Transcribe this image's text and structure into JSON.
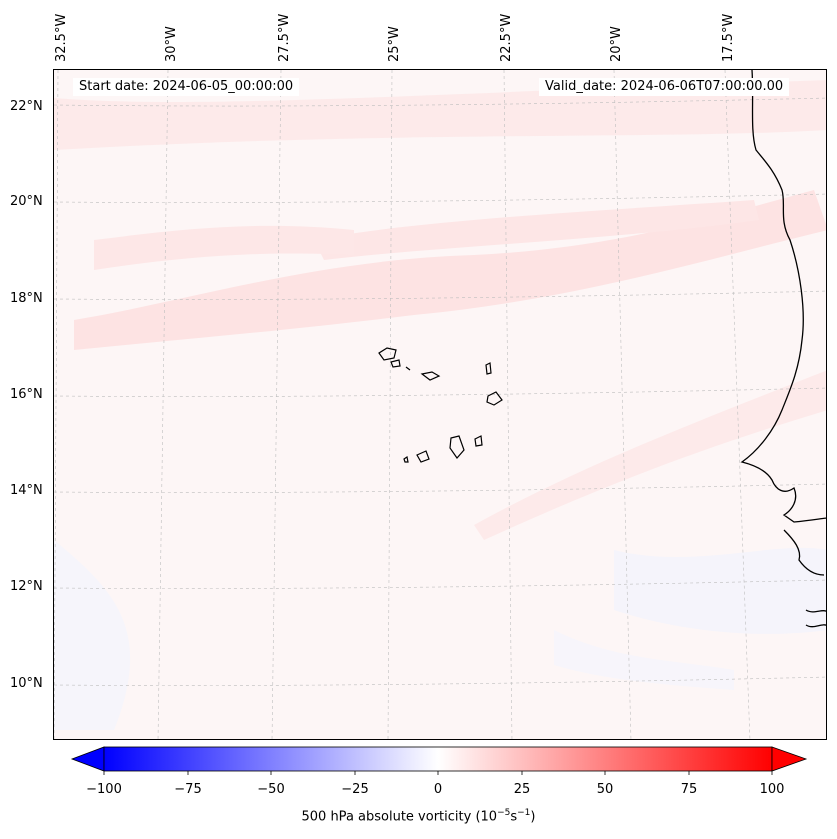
{
  "header": {
    "start_date": "Start date: 2024-06-05_00:00:00",
    "valid_date": "Valid_date: 2024-06-06T07:00:00.00"
  },
  "map": {
    "lon_labels": [
      "32.5°W",
      "30°W",
      "27.5°W",
      "25°W",
      "22.5°W",
      "20°W",
      "17.5°W"
    ],
    "lat_labels": [
      "22°N",
      "20°N",
      "18°N",
      "16°N",
      "14°N",
      "12°N",
      "10°N"
    ],
    "extent": {
      "lon_min": -32.7,
      "lon_max": -16.3,
      "lat_min": 8.8,
      "lat_max": 22.7
    },
    "grid": "dashed",
    "coastline_color": "#000000"
  },
  "colorbar": {
    "ticks": [
      "−100",
      "−75",
      "−50",
      "−25",
      "0",
      "25",
      "50",
      "75",
      "100"
    ],
    "label_main": "500 hPa absolute vorticity (10",
    "label_exp1": "−5",
    "label_mid": "s",
    "label_exp2": "−1",
    "label_end": ")",
    "min": -100,
    "max": 100,
    "extend": "both",
    "colormap": "bwr",
    "color_low": "#0000ff",
    "color_mid": "#ffffff",
    "color_high": "#ff0000"
  }
}
